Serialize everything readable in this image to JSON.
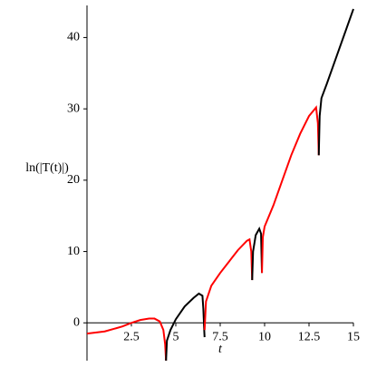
{
  "chart_data": {
    "type": "line",
    "xlabel": "t",
    "ylabel": "ln(|T(t)|)",
    "xlim": [
      0,
      15
    ],
    "ylim": [
      -5.3,
      44.5
    ],
    "xticks": [
      2.5,
      5,
      7.5,
      10,
      12.5,
      15
    ],
    "yticks": [
      0,
      10,
      20,
      30,
      40
    ],
    "series": [
      {
        "color": "#ff0000",
        "x": [
          0,
          1,
          2,
          2.5,
          3,
          3.5,
          3.8,
          4.1,
          4.3,
          4.4,
          4.45
        ],
        "values": [
          -1.5,
          -1.2,
          -0.5,
          0,
          0.4,
          0.6,
          0.6,
          0.2,
          -1,
          -3,
          -5.3
        ]
      },
      {
        "color": "#000000",
        "x": [
          4.45,
          4.5,
          4.7,
          5,
          5.5,
          6,
          6.3,
          6.5,
          6.55,
          6.6,
          6.62
        ],
        "values": [
          -5.3,
          -2.5,
          -1,
          0.5,
          2.3,
          3.5,
          4.1,
          3.8,
          2,
          -1,
          -2
        ]
      },
      {
        "color": "#ff0000",
        "x": [
          6.62,
          6.7,
          7,
          7.5,
          8,
          8.5,
          9,
          9.15,
          9.25,
          9.3
        ],
        "values": [
          -1,
          3,
          5.2,
          7,
          8.6,
          10.2,
          11.5,
          11.7,
          10,
          6
        ]
      },
      {
        "color": "#000000",
        "x": [
          9.3,
          9.35,
          9.5,
          9.7,
          9.8,
          9.85
        ],
        "values": [
          6,
          10,
          12.3,
          13.2,
          12.5,
          7
        ]
      },
      {
        "color": "#ff0000",
        "x": [
          9.85,
          9.9,
          10,
          10.5,
          11,
          11.5,
          12,
          12.5,
          12.9,
          13,
          13.05
        ],
        "values": [
          7,
          12,
          13.5,
          16.5,
          20,
          23.5,
          26.5,
          29,
          30.2,
          28,
          23.5
        ]
      },
      {
        "color": "#000000",
        "x": [
          13.05,
          13.1,
          13.2,
          13.5,
          14,
          14.5,
          15
        ],
        "values": [
          23.5,
          29,
          31.5,
          33.5,
          37,
          40.5,
          44
        ]
      }
    ]
  }
}
